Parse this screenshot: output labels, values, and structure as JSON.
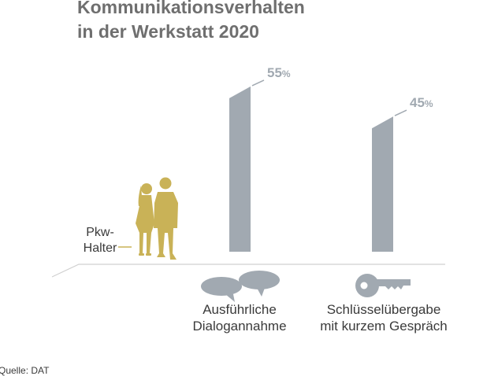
{
  "title_lines": [
    "Kommunikationsverhalten",
    "in der Werkstatt 2020"
  ],
  "legend_label": [
    "Pkw-",
    "Halter"
  ],
  "source": "Quelle: DAT",
  "colors": {
    "bar": "#a1a9b1",
    "person": "#c9b257",
    "title": "#6f6f6f",
    "text": "#3a3a3a"
  },
  "icons": [
    "speech-bubbles-icon",
    "key-icon"
  ],
  "chart_data": {
    "type": "bar",
    "title": "Kommunikationsverhalten in der Werkstatt 2020",
    "categories": [
      [
        "Ausführliche",
        "Dialogannahme"
      ],
      [
        "Schlüsselübergabe",
        "mit kurzem Gespräch"
      ]
    ],
    "values": [
      55,
      45
    ],
    "value_labels": [
      "55",
      "45"
    ],
    "unit": "%",
    "series": [
      {
        "name": "Pkw-Halter",
        "values": [
          55,
          45
        ]
      }
    ],
    "ylim": [
      0,
      100
    ],
    "grid": false,
    "xlabel": "",
    "ylabel": ""
  }
}
